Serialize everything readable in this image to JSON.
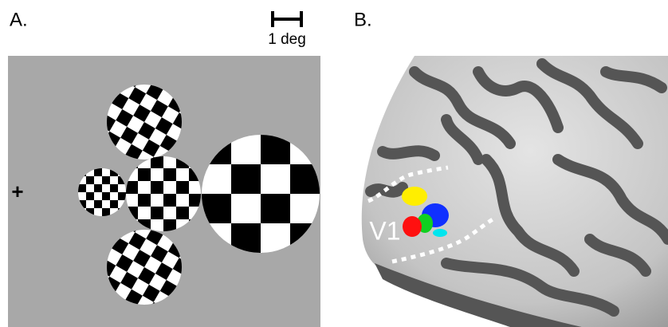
{
  "panels": [
    {
      "label": "A."
    },
    {
      "label": "B."
    }
  ],
  "scale_bar": "1 deg",
  "fixation": "+",
  "region_label": "V1"
}
